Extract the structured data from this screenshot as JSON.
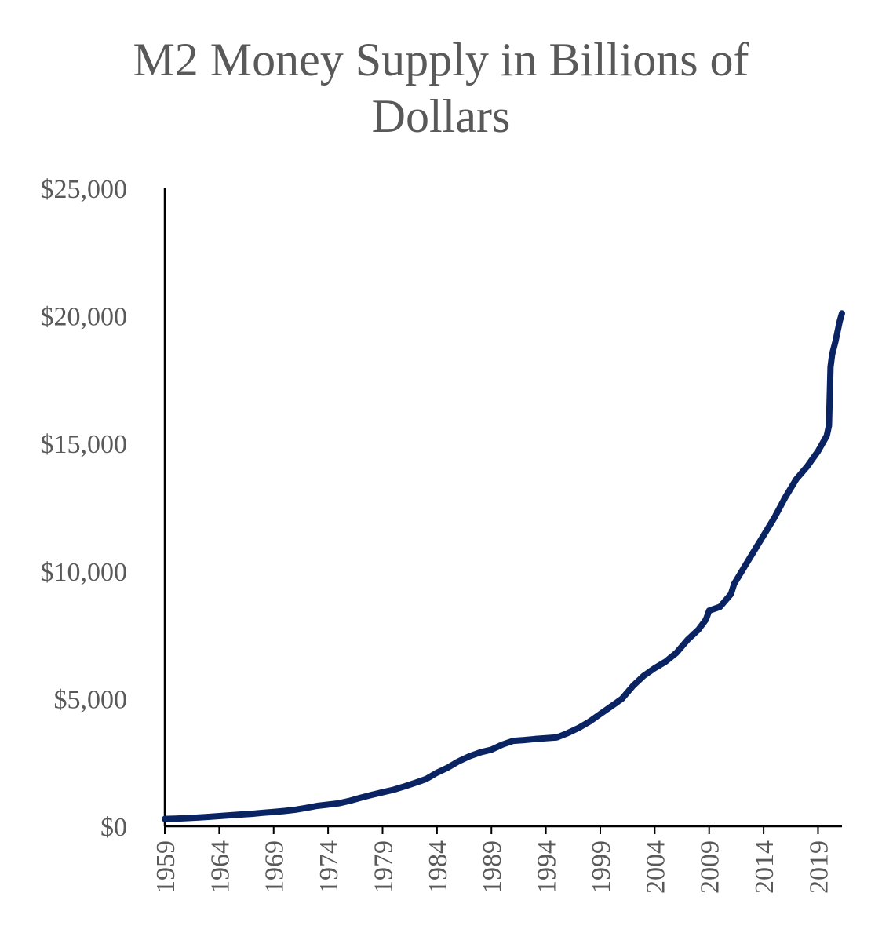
{
  "chart_data": {
    "type": "line",
    "title": "M2 Money Supply in Billions of Dollars",
    "title_lines": [
      "M2 Money Supply in Billions of",
      "Dollars"
    ],
    "xlabel": "",
    "ylabel": "",
    "xlim": [
      1959,
      2021.2
    ],
    "ylim": [
      0,
      25000
    ],
    "y_ticks": [
      0,
      5000,
      10000,
      15000,
      20000,
      25000
    ],
    "y_tick_labels": [
      "$0",
      "$5,000",
      "$10,000",
      "$15,000",
      "$20,000",
      "$25,000"
    ],
    "x_ticks": [
      1959,
      1964,
      1969,
      1974,
      1979,
      1984,
      1989,
      1994,
      1999,
      2004,
      2009,
      2014,
      2019
    ],
    "x_tick_labels": [
      "1959",
      "1964",
      "1969",
      "1974",
      "1979",
      "1984",
      "1989",
      "1994",
      "1999",
      "2004",
      "2009",
      "2014",
      "2019"
    ],
    "grid": false,
    "legend": "none",
    "series": [
      {
        "name": "M2",
        "color": "#0a2463",
        "x": [
          1959,
          1960,
          1961,
          1962,
          1963,
          1964,
          1965,
          1966,
          1967,
          1968,
          1969,
          1970,
          1971,
          1972,
          1973,
          1974,
          1975,
          1976,
          1977,
          1978,
          1979,
          1980,
          1981,
          1982,
          1983,
          1984,
          1985,
          1986,
          1987,
          1988,
          1989,
          1990,
          1991,
          1992,
          1993,
          1994,
          1995,
          1996,
          1997,
          1998,
          1999,
          2000,
          2001,
          2002,
          2003,
          2004,
          2005,
          2006,
          2007,
          2008,
          2008.7,
          2009,
          2010,
          2011,
          2011.3,
          2012,
          2013,
          2014,
          2015,
          2016,
          2017,
          2018,
          2019,
          2019.8,
          2020,
          2020.15,
          2020.3,
          2020.6,
          2021,
          2021.2
        ],
        "values": [
          290,
          300,
          320,
          340,
          370,
          400,
          430,
          460,
          490,
          530,
          560,
          600,
          650,
          720,
          800,
          850,
          900,
          1000,
          1120,
          1230,
          1330,
          1430,
          1560,
          1700,
          1850,
          2100,
          2300,
          2550,
          2750,
          2900,
          3000,
          3200,
          3350,
          3380,
          3420,
          3450,
          3480,
          3650,
          3850,
          4100,
          4400,
          4700,
          5000,
          5500,
          5900,
          6200,
          6450,
          6800,
          7300,
          7700,
          8100,
          8450,
          8600,
          9100,
          9500,
          10000,
          10700,
          11400,
          12100,
          12900,
          13600,
          14100,
          14700,
          15300,
          15700,
          18000,
          18500,
          19000,
          19800,
          20100
        ]
      }
    ]
  }
}
